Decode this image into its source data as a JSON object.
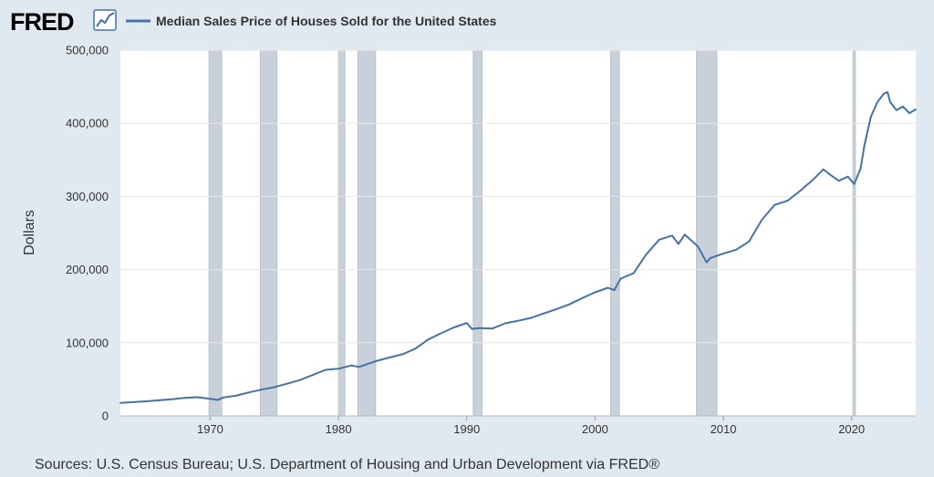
{
  "logo": {
    "text": "FRED",
    "icon": "line-chart-icon"
  },
  "colors": {
    "series": "#4572a7",
    "recession": "#c8d0d9",
    "background": "#e1e9f0",
    "plot_bg": "#ffffff"
  },
  "chart_data": {
    "type": "line",
    "title": "Median Sales Price of Houses Sold for the United States",
    "ylabel": "Dollars",
    "xlabel": "",
    "xlim": [
      1963,
      2025
    ],
    "ylim": [
      0,
      500000
    ],
    "x_ticks": [
      1970,
      1980,
      1990,
      2000,
      2010,
      2020
    ],
    "y_ticks": [
      0,
      100000,
      200000,
      300000,
      400000,
      500000
    ],
    "y_tick_labels": [
      "0",
      "100,000",
      "200,000",
      "300,000",
      "400,000",
      "500,000"
    ],
    "recessions": [
      [
        1969.9,
        1970.9
      ],
      [
        1973.9,
        1975.2
      ],
      [
        1980.0,
        1980.5
      ],
      [
        1981.5,
        1982.9
      ],
      [
        1990.5,
        1991.2
      ],
      [
        2001.2,
        2001.9
      ],
      [
        2007.9,
        2009.5
      ],
      [
        2020.1,
        2020.3
      ]
    ],
    "series": [
      {
        "name": "Median Sales Price of Houses Sold for the United States",
        "x": [
          1963,
          1965,
          1967,
          1968,
          1969,
          1970,
          1970.6,
          1971,
          1972,
          1973,
          1974,
          1975,
          1976,
          1977,
          1978,
          1979,
          1980,
          1981,
          1981.6,
          1982,
          1983,
          1984,
          1985,
          1986,
          1987,
          1988,
          1989,
          1990,
          1990.4,
          1991,
          1992,
          1993,
          1994,
          1995,
          1996,
          1997,
          1998,
          1999,
          2000,
          2001,
          2001.5,
          2002,
          2003,
          2004,
          2005,
          2006,
          2006.5,
          2007,
          2008,
          2008.7,
          2009,
          2010,
          2011,
          2012,
          2013,
          2014,
          2015,
          2016,
          2017,
          2017.8,
          2018.3,
          2019,
          2019.7,
          2020.2,
          2020.7,
          2021,
          2021.5,
          2022,
          2022.5,
          2022.8,
          2023,
          2023.5,
          2024,
          2024.5,
          2025
        ],
        "values": [
          17800,
          20000,
          22700,
          24700,
          25600,
          23400,
          21800,
          25000,
          27500,
          32000,
          35900,
          39300,
          44000,
          49000,
          56000,
          63000,
          64500,
          68900,
          67000,
          69300,
          75300,
          79900,
          84300,
          92000,
          104500,
          113000,
          121000,
          127000,
          119000,
          120000,
          119500,
          126500,
          130000,
          133900,
          140000,
          146000,
          152500,
          161000,
          169000,
          175200,
          172000,
          187600,
          195000,
          221000,
          240900,
          246500,
          235000,
          247900,
          232100,
          210000,
          216000,
          221800,
          227200,
          238400,
          268000,
          288500,
          294200,
          307800,
          323100,
          337000,
          330000,
          321500,
          327000,
          317100,
          338000,
          369800,
          409000,
          428700,
          440300,
          442600,
          429000,
          418000,
          423000,
          414000,
          419000
        ]
      }
    ],
    "source": "Sources: U.S. Census Bureau; U.S. Department of Housing and Urban Development via FRED®"
  }
}
